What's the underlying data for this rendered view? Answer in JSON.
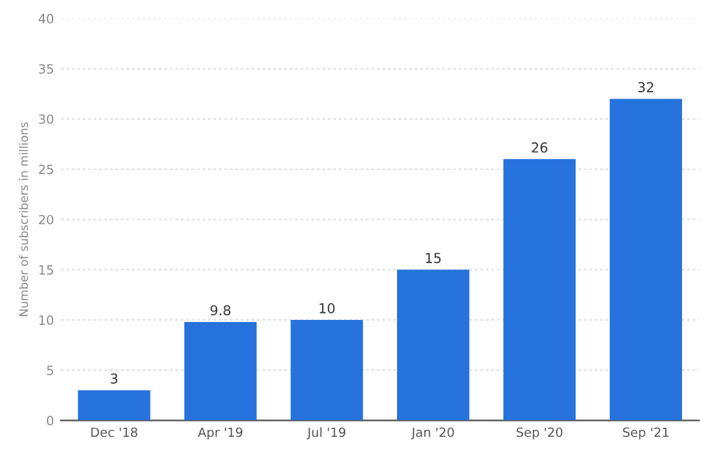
{
  "chart_data": {
    "type": "bar",
    "ylabel": "Number of subscribers in millions",
    "categories": [
      "Dec '18",
      "Apr '19",
      "Jul '19",
      "Jan '20",
      "Sep '20",
      "Sep '21"
    ],
    "values": [
      3,
      9.8,
      10,
      15,
      26,
      32
    ],
    "color": "#2673dd",
    "ylim": [
      0,
      40
    ],
    "yticks": [
      0,
      5,
      10,
      15,
      20,
      25,
      30,
      35,
      40
    ],
    "grid": "y",
    "data_labels": true
  }
}
